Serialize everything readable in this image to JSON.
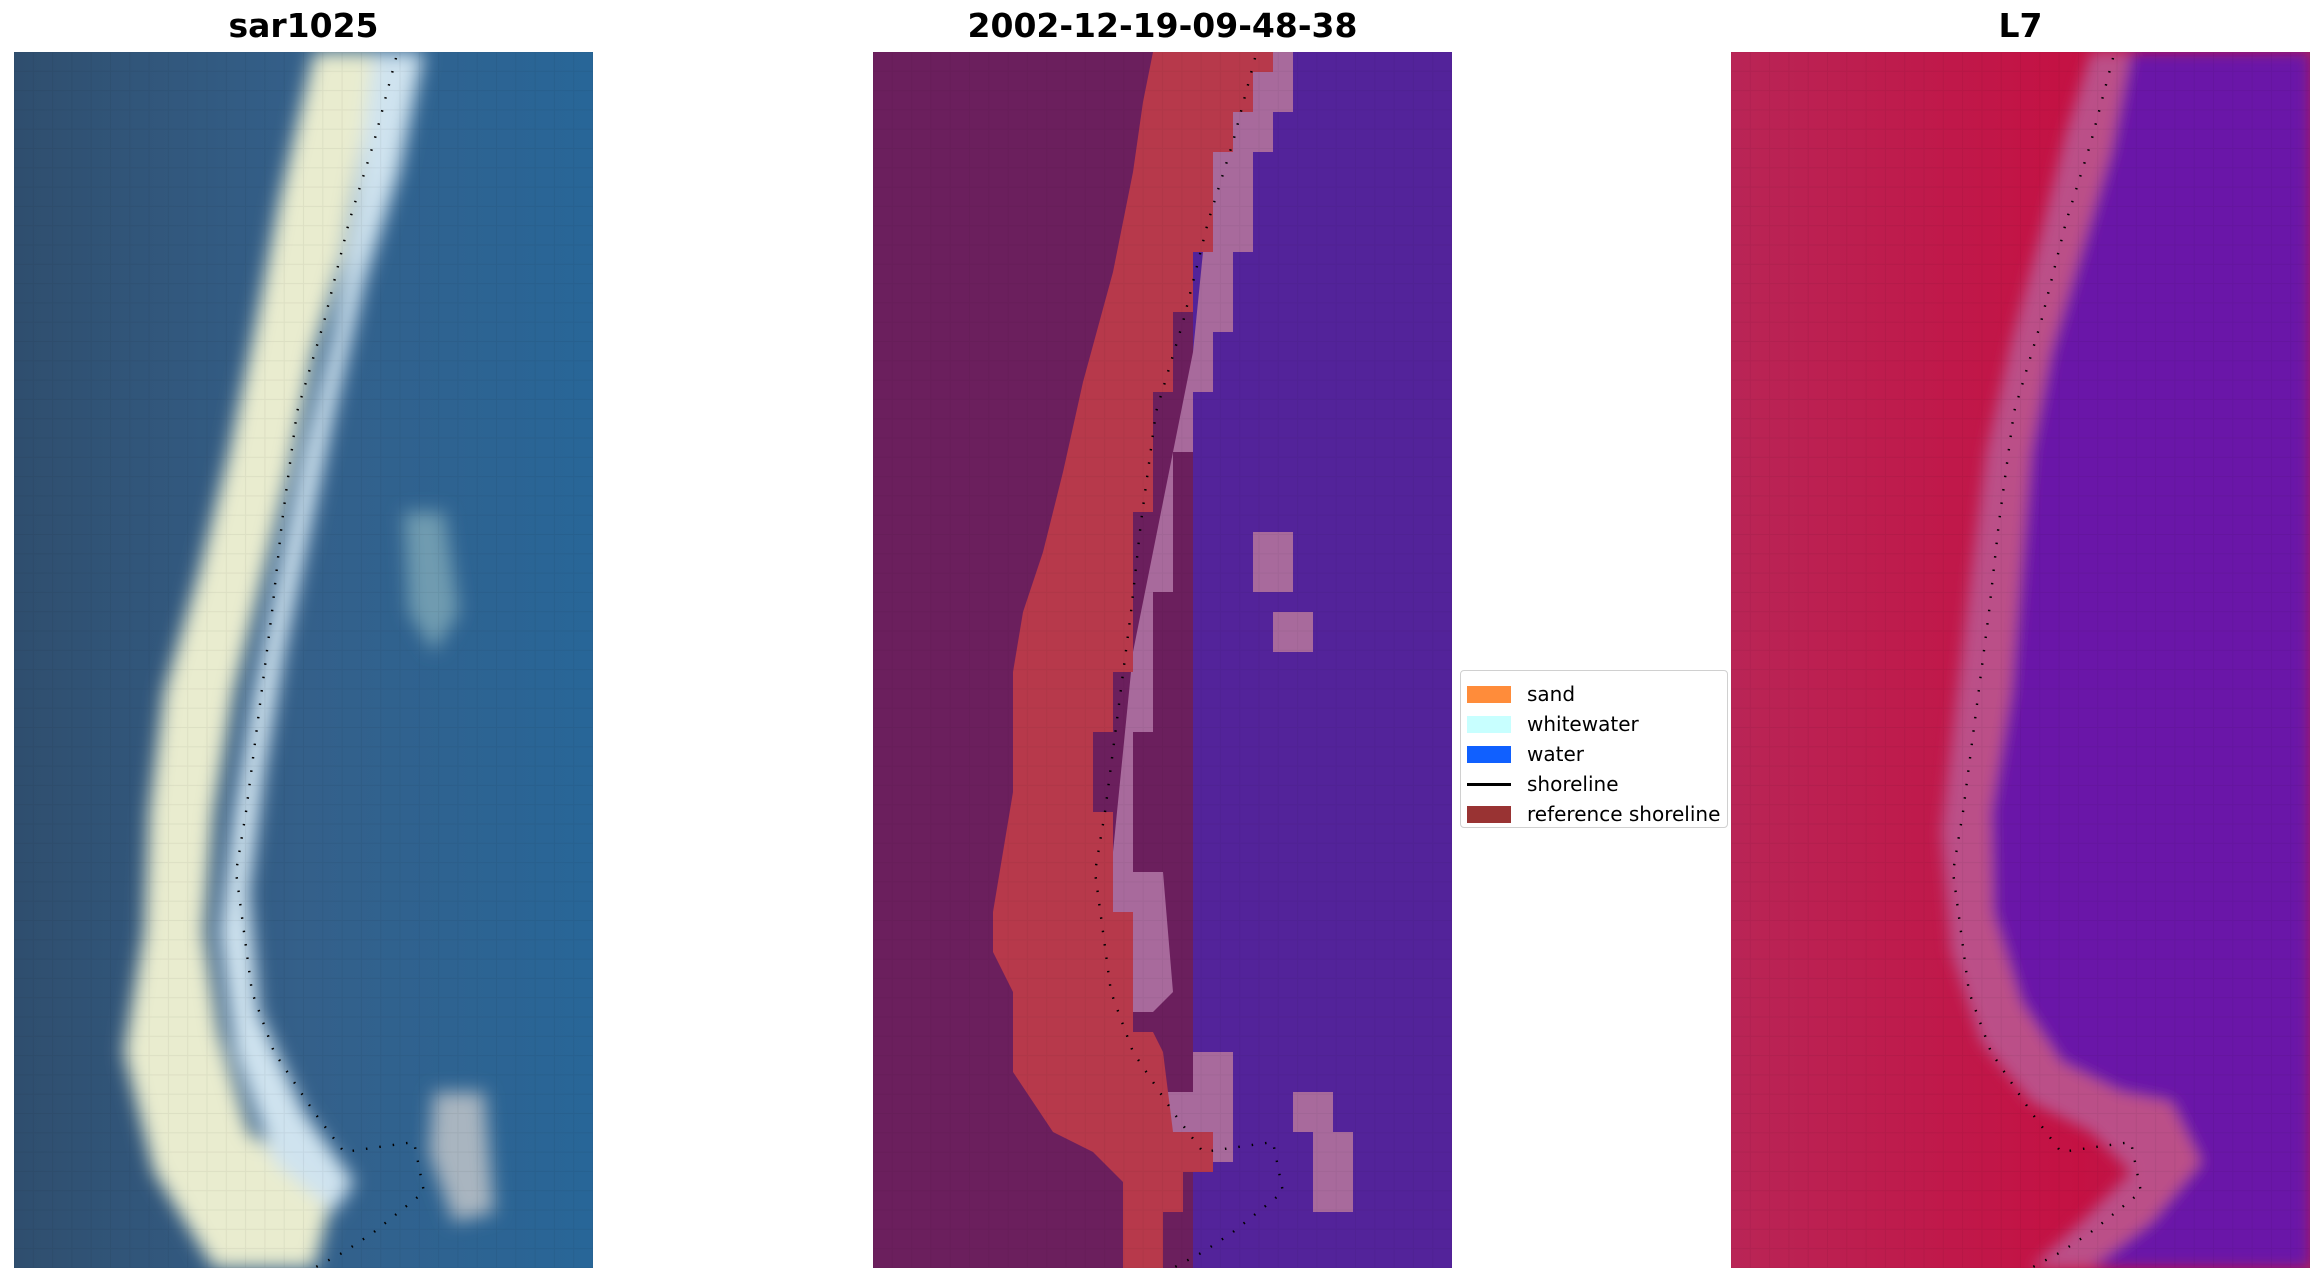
{
  "titles": {
    "left": "sar1025",
    "center": "2002-12-19-09-48-38",
    "right": "L7"
  },
  "legend": {
    "items": [
      {
        "label": "sand",
        "type": "patch",
        "color": "#ff8c3a"
      },
      {
        "label": "whitewater",
        "type": "patch",
        "color": "#c8ffff"
      },
      {
        "label": "water",
        "type": "patch",
        "color": "#1060ff"
      },
      {
        "label": "shoreline",
        "type": "line",
        "color": "#000000"
      },
      {
        "label": "reference shoreline",
        "type": "patch",
        "color": "#993333"
      }
    ]
  },
  "panels": {
    "left": {
      "image": "rgb-satellite-image",
      "colors": {
        "background": "#33587c",
        "sand": "#f0f2d8",
        "whitewater": "#cfe3ee",
        "water": "#275f96"
      }
    },
    "center": {
      "image": "classified-image",
      "colors": {
        "land": "#6b1f5d",
        "sand": "#b7394b",
        "whitewater": "#a86a9c",
        "water": "#53239a"
      }
    },
    "right": {
      "image": "index-image",
      "colors": {
        "land": "#c01a48",
        "beach": "#b84c86",
        "water": "#6a14a8"
      }
    }
  }
}
